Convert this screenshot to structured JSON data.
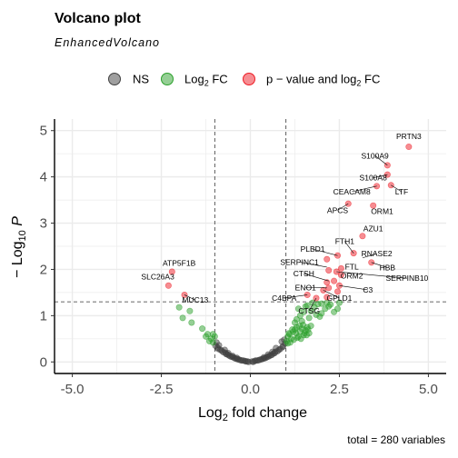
{
  "chart_data": {
    "type": "scatter",
    "title": "Volcano plot",
    "subtitle": "EnhancedVolcano",
    "xlabel": "Log2 fold change",
    "ylabel": "−Log10 P",
    "caption": "total = 280 variables",
    "xlim": [
      -5.5,
      5.5
    ],
    "ylim": [
      -0.25,
      5.25
    ],
    "x_ticks": [
      {
        "v": -5,
        "label": "-5.0"
      },
      {
        "v": -2.5,
        "label": "-2.5"
      },
      {
        "v": 0,
        "label": "0.0"
      },
      {
        "v": 2.5,
        "label": "2.5"
      },
      {
        "v": 5,
        "label": "5.0"
      }
    ],
    "y_ticks": [
      {
        "v": 0,
        "label": "0"
      },
      {
        "v": 1,
        "label": "1"
      },
      {
        "v": 2,
        "label": "2"
      },
      {
        "v": 3,
        "label": "3"
      },
      {
        "v": 4,
        "label": "4"
      },
      {
        "v": 5,
        "label": "5"
      }
    ],
    "fc_cutoff": 1.0,
    "p_cutoff": 1.3,
    "grid": true,
    "legend_position": "top",
    "legend": [
      {
        "key": "ns",
        "label": "NS",
        "color": "#404040"
      },
      {
        "key": "fc",
        "label": "Log2 FC",
        "color": "#2ca02c"
      },
      {
        "key": "both",
        "label": "p − value and log2 FC",
        "color": "#ee1c25"
      }
    ],
    "series": {
      "ns": [
        [
          -0.05,
          0.0
        ],
        [
          0.05,
          0.01
        ],
        [
          -0.12,
          0.01
        ],
        [
          0.12,
          0.02
        ],
        [
          -0.2,
          0.03
        ],
        [
          0.2,
          0.03
        ],
        [
          -0.28,
          0.04
        ],
        [
          0.28,
          0.05
        ],
        [
          -0.36,
          0.06
        ],
        [
          0.36,
          0.07
        ],
        [
          -0.44,
          0.08
        ],
        [
          0.44,
          0.09
        ],
        [
          -0.52,
          0.11
        ],
        [
          0.52,
          0.12
        ],
        [
          -0.6,
          0.14
        ],
        [
          0.6,
          0.15
        ],
        [
          -0.68,
          0.17
        ],
        [
          0.68,
          0.19
        ],
        [
          -0.76,
          0.21
        ],
        [
          0.76,
          0.23
        ],
        [
          -0.84,
          0.26
        ],
        [
          0.84,
          0.28
        ],
        [
          -0.92,
          0.31
        ],
        [
          0.92,
          0.34
        ],
        [
          -0.98,
          0.35
        ],
        [
          0.98,
          0.4
        ],
        [
          -0.15,
          0.02
        ],
        [
          0.15,
          0.03
        ],
        [
          -0.32,
          0.05
        ],
        [
          0.32,
          0.06
        ],
        [
          -0.48,
          0.1
        ],
        [
          0.48,
          0.11
        ],
        [
          -0.64,
          0.16
        ],
        [
          0.64,
          0.18
        ],
        [
          -0.8,
          0.24
        ],
        [
          0.8,
          0.26
        ],
        [
          -0.9,
          0.28
        ],
        [
          0.9,
          0.32
        ],
        [
          -0.7,
          0.2
        ],
        [
          0.7,
          0.22
        ],
        [
          -0.56,
          0.12
        ],
        [
          0.56,
          0.14
        ],
        [
          -0.4,
          0.07
        ],
        [
          0.4,
          0.08
        ],
        [
          -0.24,
          0.03
        ],
        [
          0.24,
          0.04
        ],
        [
          -0.08,
          0.01
        ],
        [
          0.08,
          0.0
        ],
        [
          -0.95,
          0.42
        ],
        [
          0.95,
          0.48
        ],
        [
          -0.88,
          0.36
        ],
        [
          0.88,
          0.44
        ],
        [
          -0.72,
          0.26
        ],
        [
          0.72,
          0.3
        ],
        [
          0.62,
          0.22
        ],
        [
          -0.62,
          0.19
        ],
        [
          0.5,
          0.16
        ],
        [
          -0.5,
          0.13
        ],
        [
          0.38,
          0.1
        ],
        [
          -0.38,
          0.09
        ]
      ],
      "fc": [
        [
          -1.05,
          0.42
        ],
        [
          -1.1,
          0.5
        ],
        [
          -1.2,
          0.6
        ],
        [
          -1.35,
          0.72
        ],
        [
          -1.0,
          0.55
        ],
        [
          -1.15,
          0.45
        ],
        [
          -1.9,
          0.95
        ],
        [
          -1.65,
          0.85
        ],
        [
          -2.0,
          1.18
        ],
        [
          -1.7,
          1.1
        ],
        [
          -1.05,
          0.6
        ],
        [
          -1.25,
          0.55
        ],
        [
          1.02,
          0.45
        ],
        [
          1.05,
          0.55
        ],
        [
          1.1,
          0.6
        ],
        [
          1.15,
          0.5
        ],
        [
          1.2,
          0.65
        ],
        [
          1.25,
          0.7
        ],
        [
          1.3,
          0.75
        ],
        [
          1.35,
          0.55
        ],
        [
          1.4,
          0.65
        ],
        [
          1.45,
          0.72
        ],
        [
          1.5,
          0.58
        ],
        [
          1.55,
          0.68
        ],
        [
          1.6,
          0.75
        ],
        [
          1.65,
          0.62
        ],
        [
          1.7,
          0.78
        ],
        [
          1.05,
          0.4
        ],
        [
          1.12,
          0.42
        ],
        [
          1.22,
          0.48
        ],
        [
          1.32,
          0.52
        ],
        [
          1.42,
          0.5
        ],
        [
          1.52,
          0.62
        ],
        [
          1.62,
          0.7
        ],
        [
          1.08,
          0.62
        ],
        [
          1.18,
          0.7
        ],
        [
          1.28,
          0.62
        ],
        [
          1.38,
          0.78
        ],
        [
          1.48,
          0.8
        ],
        [
          1.58,
          0.58
        ],
        [
          1.3,
          0.92
        ],
        [
          1.4,
          1.0
        ],
        [
          1.5,
          1.08
        ],
        [
          1.55,
          1.2
        ],
        [
          1.7,
          1.1
        ],
        [
          1.8,
          1.18
        ],
        [
          1.9,
          1.25
        ],
        [
          2.0,
          1.05
        ],
        [
          2.1,
          1.15
        ],
        [
          2.2,
          1.2
        ],
        [
          2.35,
          1.08
        ],
        [
          2.45,
          1.15
        ],
        [
          2.5,
          1.28
        ],
        [
          1.35,
          1.15
        ],
        [
          1.6,
          1.22
        ],
        [
          1.75,
          1.28
        ],
        [
          2.0,
          1.26
        ],
        [
          2.25,
          1.24
        ],
        [
          1.25,
          0.85
        ],
        [
          1.45,
          0.88
        ],
        [
          1.65,
          0.95
        ],
        [
          1.85,
          1.02
        ],
        [
          1.95,
          0.98
        ],
        [
          2.15,
          1.28
        ]
      ],
      "both": [
        [
          -2.2,
          1.95
        ],
        [
          -2.3,
          1.65
        ],
        [
          -1.85,
          1.45
        ],
        [
          4.45,
          4.65
        ],
        [
          3.85,
          4.25
        ],
        [
          3.85,
          4.05
        ],
        [
          3.95,
          3.82
        ],
        [
          3.55,
          3.8
        ],
        [
          2.75,
          3.42
        ],
        [
          3.45,
          3.38
        ],
        [
          3.15,
          2.72
        ],
        [
          2.9,
          2.35
        ],
        [
          2.45,
          2.3
        ],
        [
          2.15,
          2.22
        ],
        [
          3.4,
          2.15
        ],
        [
          2.55,
          2.02
        ],
        [
          2.2,
          1.98
        ],
        [
          2.42,
          1.95
        ],
        [
          2.55,
          1.88
        ],
        [
          2.35,
          1.75
        ],
        [
          2.15,
          1.72
        ],
        [
          2.5,
          1.65
        ],
        [
          2.2,
          1.6
        ],
        [
          2.05,
          1.55
        ],
        [
          2.45,
          1.52
        ],
        [
          1.6,
          1.45
        ],
        [
          2.15,
          1.4
        ],
        [
          1.85,
          1.38
        ]
      ]
    },
    "labels": [
      {
        "text": "PRTN3",
        "x": 4.45,
        "y": 4.65,
        "lx": 4.45,
        "ly": 4.82
      },
      {
        "text": "S100A9",
        "x": 3.85,
        "y": 4.25,
        "lx": 3.5,
        "ly": 4.4
      },
      {
        "text": "S100A8",
        "x": 3.85,
        "y": 4.05,
        "lx": 3.45,
        "ly": 3.92
      },
      {
        "text": "LTF",
        "x": 3.95,
        "y": 3.82,
        "lx": 4.25,
        "ly": 3.62
      },
      {
        "text": "CEACAM8",
        "x": 3.55,
        "y": 3.8,
        "lx": 2.85,
        "ly": 3.62
      },
      {
        "text": "APCS",
        "x": 2.75,
        "y": 3.42,
        "lx": 2.45,
        "ly": 3.22
      },
      {
        "text": "ORM1",
        "x": 3.45,
        "y": 3.38,
        "lx": 3.7,
        "ly": 3.2
      },
      {
        "text": "AZU1",
        "x": 3.15,
        "y": 2.72,
        "lx": 3.45,
        "ly": 2.82
      },
      {
        "text": "FTH1",
        "x": 2.9,
        "y": 2.35,
        "lx": 2.65,
        "ly": 2.55
      },
      {
        "text": "PLBD1",
        "x": 2.45,
        "y": 2.3,
        "lx": 1.75,
        "ly": 2.38
      },
      {
        "text": "RNASE2",
        "x": 3.15,
        "y": 2.25,
        "lx": 3.55,
        "ly": 2.28
      },
      {
        "text": "SERPINC1",
        "x": 2.15,
        "y": 2.05,
        "lx": 1.38,
        "ly": 2.1
      },
      {
        "text": "HBB",
        "x": 3.4,
        "y": 2.15,
        "lx": 3.85,
        "ly": 1.98
      },
      {
        "text": "FTL",
        "x": 2.55,
        "y": 2.02,
        "lx": 2.85,
        "ly": 2.0
      },
      {
        "text": "CTSH",
        "x": 2.2,
        "y": 1.75,
        "lx": 1.5,
        "ly": 1.85
      },
      {
        "text": "ORM2",
        "x": 2.55,
        "y": 1.88,
        "lx": 2.85,
        "ly": 1.8
      },
      {
        "text": "SERPINB10",
        "x": 2.42,
        "y": 1.95,
        "lx": 4.4,
        "ly": 1.75
      },
      {
        "text": "ENO1",
        "x": 2.15,
        "y": 1.6,
        "lx": 1.55,
        "ly": 1.55
      },
      {
        "text": "C3",
        "x": 2.5,
        "y": 1.65,
        "lx": 3.3,
        "ly": 1.5
      },
      {
        "text": "C4BPA",
        "x": 1.6,
        "y": 1.45,
        "lx": 0.95,
        "ly": 1.32
      },
      {
        "text": "GPLD1",
        "x": 2.05,
        "y": 1.55,
        "lx": 2.5,
        "ly": 1.32
      },
      {
        "text": "CTSG",
        "x": 1.85,
        "y": 1.38,
        "lx": 1.65,
        "ly": 1.05
      },
      {
        "text": "ATP5F1B",
        "x": -2.2,
        "y": 1.95,
        "lx": -2.0,
        "ly": 2.08
      },
      {
        "text": "SLC26A3",
        "x": -2.3,
        "y": 1.65,
        "lx": -2.6,
        "ly": 1.78
      },
      {
        "text": "MUC13",
        "x": -1.85,
        "y": 1.45,
        "lx": -1.55,
        "ly": 1.28
      }
    ]
  }
}
